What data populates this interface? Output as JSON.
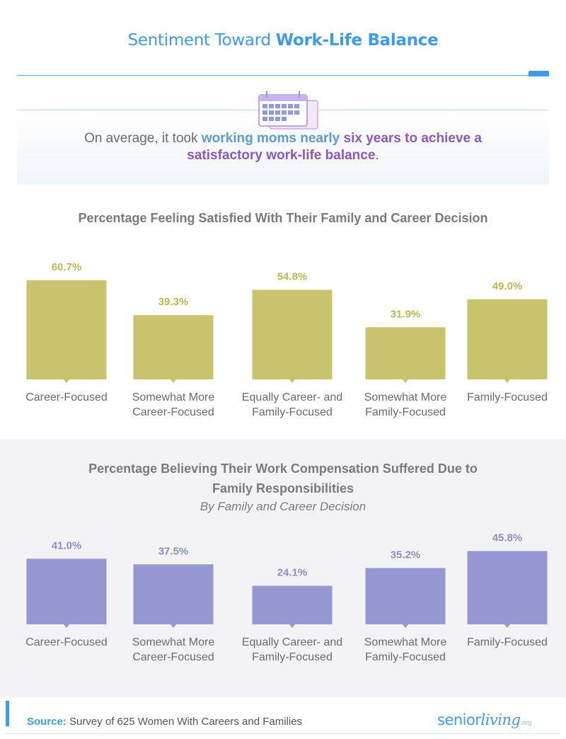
{
  "header": {
    "title_regular": "Sentiment Toward ",
    "title_bold": "Work-Life Balance"
  },
  "callout": {
    "part1": "On average, it took ",
    "part2": "working moms nearly",
    "part3": " six years to achieve a",
    "part4": "satisfactory work-life balance",
    "part5": "."
  },
  "icon": "calendar-icon",
  "colors": {
    "accent": "#3d9be9",
    "chart1_bar": "#c8c36c",
    "chart2_bar": "#9497d1",
    "chart1_label": "#bdb84f",
    "chart2_label": "#8b8ed0"
  },
  "chart_data": [
    {
      "type": "bar",
      "title": "Percentage Feeling Satisfied With Their Family and Career Decision",
      "categories": [
        "Career-Focused",
        "Somewhat More Career-Focused",
        "Equally Career- and Family-Focused",
        "Somewhat More Family-Focused",
        "Family-Focused"
      ],
      "category_lines": [
        [
          "Career-Focused"
        ],
        [
          "Somewhat More",
          "Career-Focused"
        ],
        [
          "Equally Career- and",
          "Family-Focused"
        ],
        [
          "Somewhat More",
          "Family-Focused"
        ],
        [
          "Family-Focused"
        ]
      ],
      "values": [
        60.7,
        39.3,
        54.8,
        31.9,
        49.0
      ],
      "value_labels": [
        "60.7%",
        "39.3%",
        "54.8%",
        "31.9%",
        "49.0%"
      ],
      "unit": "%",
      "ylim": [
        0,
        100
      ],
      "grid": false
    },
    {
      "type": "bar",
      "title": "Percentage Believing Their Work Compensation Suffered Due to Family Responsibilities",
      "title_lines": [
        "Percentage Believing Their Work Compensation Suffered Due to",
        "Family Responsibilities"
      ],
      "subtitle": "By Family and Career Decision",
      "categories": [
        "Career-Focused",
        "Somewhat More Career-Focused",
        "Equally Career- and Family-Focused",
        "Somewhat More Family-Focused",
        "Family-Focused"
      ],
      "category_lines": [
        [
          "Career-Focused"
        ],
        [
          "Somewhat More",
          "Career-Focused"
        ],
        [
          "Equally Career- and",
          "Family-Focused"
        ],
        [
          "Somewhat More",
          "Family-Focused"
        ],
        [
          "Family-Focused"
        ]
      ],
      "values": [
        41.0,
        37.5,
        24.1,
        35.2,
        45.8
      ],
      "value_labels": [
        "41.0%",
        "37.5%",
        "24.1%",
        "35.2%",
        "45.8%"
      ],
      "unit": "%",
      "ylim": [
        0,
        100
      ],
      "grid": false
    }
  ],
  "footer": {
    "source_label": "Source:",
    "source_text": " Survey of 625 Women With Careers and Families",
    "logo_part1": "senior",
    "logo_part2": "living",
    "logo_suffix": ".org"
  }
}
